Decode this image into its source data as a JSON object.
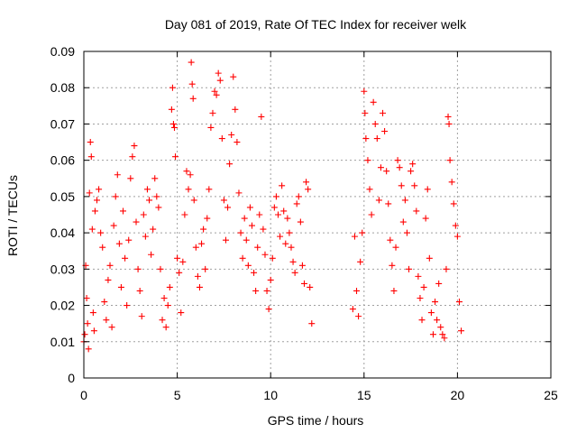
{
  "chart_data": {
    "type": "scatter",
    "title": "Day 081 of 2019, Rate Of TEC Index for receiver welk",
    "xlabel": "GPS time / hours",
    "ylabel": "ROTI / TECUs",
    "xlim": [
      0,
      25
    ],
    "ylim": [
      0,
      0.09
    ],
    "x_ticks": [
      0,
      5,
      10,
      15,
      20,
      25
    ],
    "x_tick_labels": [
      "0",
      "5",
      "10",
      "15",
      "20",
      "25"
    ],
    "y_ticks": [
      0,
      0.01,
      0.02,
      0.03,
      0.04,
      0.05,
      0.06,
      0.07,
      0.08,
      0.09
    ],
    "y_tick_labels": [
      "0",
      "0.01",
      "0.02",
      "0.03",
      "0.04",
      "0.05",
      "0.06",
      "0.07",
      "0.08",
      "0.09"
    ],
    "grid": true,
    "marker": "+",
    "color": "#ff0000",
    "series": [
      {
        "points": [
          [
            0.0,
            0.01
          ],
          [
            0.05,
            0.012
          ],
          [
            0.1,
            0.031
          ],
          [
            0.15,
            0.022
          ],
          [
            0.2,
            0.015
          ],
          [
            0.25,
            0.008
          ],
          [
            0.3,
            0.051
          ],
          [
            0.35,
            0.065
          ],
          [
            0.4,
            0.061
          ],
          [
            0.45,
            0.041
          ],
          [
            0.5,
            0.018
          ],
          [
            0.55,
            0.013
          ],
          [
            0.6,
            0.046
          ],
          [
            0.7,
            0.049
          ],
          [
            0.8,
            0.052
          ],
          [
            0.9,
            0.04
          ],
          [
            1.0,
            0.036
          ],
          [
            1.1,
            0.021
          ],
          [
            1.2,
            0.016
          ],
          [
            1.3,
            0.027
          ],
          [
            1.4,
            0.031
          ],
          [
            1.5,
            0.014
          ],
          [
            1.6,
            0.042
          ],
          [
            1.7,
            0.05
          ],
          [
            1.8,
            0.056
          ],
          [
            1.9,
            0.037
          ],
          [
            2.0,
            0.025
          ],
          [
            2.1,
            0.046
          ],
          [
            2.2,
            0.033
          ],
          [
            2.3,
            0.02
          ],
          [
            2.4,
            0.038
          ],
          [
            2.5,
            0.055
          ],
          [
            2.6,
            0.061
          ],
          [
            2.7,
            0.064
          ],
          [
            2.8,
            0.043
          ],
          [
            2.9,
            0.03
          ],
          [
            3.0,
            0.024
          ],
          [
            3.1,
            0.017
          ],
          [
            3.2,
            0.045
          ],
          [
            3.3,
            0.039
          ],
          [
            3.4,
            0.052
          ],
          [
            3.5,
            0.049
          ],
          [
            3.6,
            0.034
          ],
          [
            3.7,
            0.041
          ],
          [
            3.8,
            0.055
          ],
          [
            3.9,
            0.05
          ],
          [
            4.0,
            0.047
          ],
          [
            4.1,
            0.03
          ],
          [
            4.2,
            0.016
          ],
          [
            4.3,
            0.022
          ],
          [
            4.4,
            0.014
          ],
          [
            4.5,
            0.02
          ],
          [
            4.6,
            0.025
          ],
          [
            4.7,
            0.074
          ],
          [
            4.75,
            0.08
          ],
          [
            4.8,
            0.07
          ],
          [
            4.85,
            0.069
          ],
          [
            4.9,
            0.061
          ],
          [
            5.0,
            0.033
          ],
          [
            5.1,
            0.029
          ],
          [
            5.2,
            0.018
          ],
          [
            5.3,
            0.032
          ],
          [
            5.4,
            0.045
          ],
          [
            5.5,
            0.057
          ],
          [
            5.6,
            0.052
          ],
          [
            5.7,
            0.056
          ],
          [
            5.75,
            0.087
          ],
          [
            5.8,
            0.081
          ],
          [
            5.85,
            0.077
          ],
          [
            5.9,
            0.049
          ],
          [
            6.0,
            0.036
          ],
          [
            6.1,
            0.028
          ],
          [
            6.2,
            0.025
          ],
          [
            6.3,
            0.037
          ],
          [
            6.4,
            0.041
          ],
          [
            6.5,
            0.03
          ],
          [
            6.6,
            0.044
          ],
          [
            6.7,
            0.052
          ],
          [
            6.8,
            0.069
          ],
          [
            6.9,
            0.073
          ],
          [
            7.0,
            0.079
          ],
          [
            7.1,
            0.078
          ],
          [
            7.2,
            0.084
          ],
          [
            7.3,
            0.082
          ],
          [
            7.4,
            0.066
          ],
          [
            7.5,
            0.049
          ],
          [
            7.6,
            0.038
          ],
          [
            7.7,
            0.047
          ],
          [
            7.8,
            0.059
          ],
          [
            7.9,
            0.067
          ],
          [
            8.0,
            0.083
          ],
          [
            8.1,
            0.074
          ],
          [
            8.2,
            0.065
          ],
          [
            8.3,
            0.051
          ],
          [
            8.4,
            0.04
          ],
          [
            8.5,
            0.033
          ],
          [
            8.6,
            0.044
          ],
          [
            8.7,
            0.038
          ],
          [
            8.8,
            0.031
          ],
          [
            8.9,
            0.047
          ],
          [
            9.0,
            0.042
          ],
          [
            9.1,
            0.029
          ],
          [
            9.2,
            0.024
          ],
          [
            9.3,
            0.036
          ],
          [
            9.4,
            0.045
          ],
          [
            9.5,
            0.072
          ],
          [
            9.6,
            0.041
          ],
          [
            9.7,
            0.034
          ],
          [
            9.8,
            0.024
          ],
          [
            9.9,
            0.019
          ],
          [
            10.0,
            0.027
          ],
          [
            10.1,
            0.033
          ],
          [
            10.2,
            0.047
          ],
          [
            10.3,
            0.05
          ],
          [
            10.4,
            0.045
          ],
          [
            10.5,
            0.039
          ],
          [
            10.6,
            0.053
          ],
          [
            10.7,
            0.046
          ],
          [
            10.8,
            0.037
          ],
          [
            10.9,
            0.044
          ],
          [
            11.0,
            0.04
          ],
          [
            11.1,
            0.036
          ],
          [
            11.2,
            0.032
          ],
          [
            11.3,
            0.029
          ],
          [
            11.4,
            0.048
          ],
          [
            11.5,
            0.05
          ],
          [
            11.6,
            0.043
          ],
          [
            11.7,
            0.031
          ],
          [
            11.8,
            0.026
          ],
          [
            11.9,
            0.054
          ],
          [
            12.0,
            0.052
          ],
          [
            12.1,
            0.025
          ],
          [
            12.2,
            0.015
          ],
          [
            14.4,
            0.019
          ],
          [
            14.5,
            0.039
          ],
          [
            14.6,
            0.024
          ],
          [
            14.7,
            0.017
          ],
          [
            14.8,
            0.032
          ],
          [
            14.9,
            0.04
          ],
          [
            15.0,
            0.079
          ],
          [
            15.05,
            0.073
          ],
          [
            15.1,
            0.066
          ],
          [
            15.2,
            0.06
          ],
          [
            15.3,
            0.052
          ],
          [
            15.4,
            0.045
          ],
          [
            15.5,
            0.076
          ],
          [
            15.6,
            0.07
          ],
          [
            15.7,
            0.066
          ],
          [
            15.8,
            0.049
          ],
          [
            15.9,
            0.058
          ],
          [
            16.0,
            0.073
          ],
          [
            16.1,
            0.068
          ],
          [
            16.2,
            0.057
          ],
          [
            16.3,
            0.048
          ],
          [
            16.4,
            0.038
          ],
          [
            16.5,
            0.031
          ],
          [
            16.6,
            0.024
          ],
          [
            16.7,
            0.036
          ],
          [
            16.8,
            0.06
          ],
          [
            16.9,
            0.058
          ],
          [
            17.0,
            0.053
          ],
          [
            17.1,
            0.043
          ],
          [
            17.2,
            0.049
          ],
          [
            17.3,
            0.04
          ],
          [
            17.4,
            0.03
          ],
          [
            17.5,
            0.057
          ],
          [
            17.6,
            0.059
          ],
          [
            17.7,
            0.053
          ],
          [
            17.8,
            0.046
          ],
          [
            17.9,
            0.028
          ],
          [
            18.0,
            0.022
          ],
          [
            18.1,
            0.016
          ],
          [
            18.2,
            0.025
          ],
          [
            18.3,
            0.044
          ],
          [
            18.4,
            0.052
          ],
          [
            18.5,
            0.033
          ],
          [
            18.6,
            0.018
          ],
          [
            18.7,
            0.012
          ],
          [
            18.8,
            0.021
          ],
          [
            18.9,
            0.016
          ],
          [
            19.0,
            0.026
          ],
          [
            19.1,
            0.014
          ],
          [
            19.2,
            0.012
          ],
          [
            19.3,
            0.011
          ],
          [
            19.4,
            0.03
          ],
          [
            19.5,
            0.072
          ],
          [
            19.55,
            0.07
          ],
          [
            19.6,
            0.06
          ],
          [
            19.7,
            0.054
          ],
          [
            19.8,
            0.048
          ],
          [
            19.9,
            0.042
          ],
          [
            20.0,
            0.039
          ],
          [
            20.1,
            0.021
          ],
          [
            20.2,
            0.013
          ]
        ]
      }
    ]
  }
}
